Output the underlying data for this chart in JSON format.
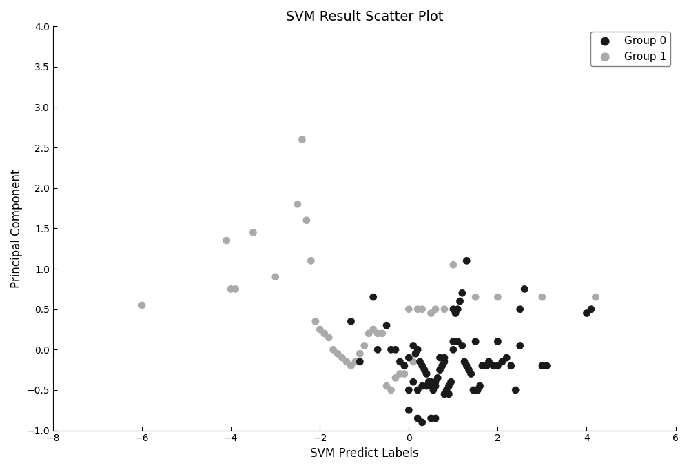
{
  "title": "SVM Result Scatter Plot",
  "xlabel": "SVM Predict Labels",
  "ylabel": "Principal Component",
  "xlim": [
    -8,
    6
  ],
  "ylim": [
    -1,
    4
  ],
  "xticks": [
    -8,
    -6,
    -4,
    -2,
    0,
    2,
    4,
    6
  ],
  "yticks": [
    -1,
    -0.5,
    0,
    0.5,
    1,
    1.5,
    2,
    2.5,
    3,
    3.5,
    4
  ],
  "group0_color": "#1a1a1a",
  "group1_color": "#aaaaaa",
  "marker_size": 60,
  "group0_x": [
    -1.3,
    -0.8,
    -0.5,
    -0.3,
    -0.2,
    -0.1,
    0.0,
    0.1,
    0.15,
    0.2,
    0.25,
    0.3,
    0.35,
    0.4,
    0.45,
    0.5,
    0.55,
    0.6,
    0.65,
    0.7,
    0.75,
    0.8,
    0.85,
    0.9,
    0.95,
    1.0,
    1.05,
    1.1,
    1.15,
    1.2,
    1.25,
    1.3,
    1.35,
    1.4,
    1.45,
    1.5,
    1.55,
    1.6,
    1.65,
    1.7,
    1.75,
    1.8,
    1.9,
    2.0,
    2.1,
    2.2,
    2.3,
    2.4,
    2.5,
    2.6,
    3.0,
    3.1,
    4.0,
    4.1,
    -1.1,
    -0.7,
    -0.4,
    0.0,
    0.2,
    0.3,
    0.5,
    0.6,
    0.8,
    0.9,
    1.0,
    1.1,
    1.2,
    1.3,
    0.4,
    0.6,
    0.7,
    0.8,
    1.0,
    1.5,
    2.0,
    2.5,
    0.0,
    0.1,
    0.2,
    0.3,
    0.5
  ],
  "group0_y": [
    0.35,
    0.65,
    0.3,
    0.0,
    -0.15,
    -0.2,
    -0.1,
    0.05,
    -0.05,
    0.0,
    -0.15,
    -0.2,
    -0.25,
    -0.3,
    -0.4,
    -0.45,
    -0.5,
    -0.4,
    -0.35,
    -0.25,
    -0.2,
    -0.15,
    -0.5,
    -0.45,
    -0.4,
    0.5,
    0.45,
    0.5,
    0.6,
    0.7,
    -0.15,
    -0.2,
    -0.25,
    -0.3,
    -0.5,
    -0.5,
    -0.5,
    -0.45,
    -0.2,
    -0.2,
    -0.2,
    -0.15,
    -0.2,
    -0.2,
    -0.15,
    -0.1,
    -0.2,
    -0.5,
    0.5,
    0.75,
    -0.2,
    -0.2,
    0.45,
    0.5,
    -0.15,
    -0.0,
    0.0,
    -0.75,
    -0.85,
    -0.9,
    -0.85,
    -0.85,
    -0.55,
    -0.55,
    0.1,
    0.1,
    0.05,
    1.1,
    -0.45,
    -0.45,
    -0.1,
    -0.1,
    0.0,
    0.1,
    0.1,
    0.05,
    -0.5,
    -0.4,
    -0.5,
    -0.45,
    -0.4
  ],
  "group1_x": [
    -6.0,
    -4.1,
    -4.0,
    -3.9,
    -3.5,
    -3.0,
    -2.5,
    -2.4,
    -2.3,
    -2.2,
    -2.1,
    -2.0,
    -1.9,
    -1.8,
    -1.7,
    -1.6,
    -1.5,
    -1.4,
    -1.3,
    -1.2,
    -1.1,
    -1.0,
    -0.9,
    -0.8,
    -0.7,
    -0.6,
    -0.5,
    -0.4,
    -0.3,
    -0.2,
    -0.1,
    0.0,
    0.1,
    0.2,
    0.3,
    0.5,
    0.6,
    0.8,
    1.0,
    1.5,
    2.0,
    3.0,
    4.2
  ],
  "group1_y": [
    0.55,
    1.35,
    0.75,
    0.75,
    1.45,
    0.9,
    1.8,
    2.6,
    1.6,
    1.1,
    0.35,
    0.25,
    0.2,
    0.15,
    0.0,
    -0.05,
    -0.1,
    -0.15,
    -0.2,
    -0.15,
    -0.05,
    0.05,
    0.2,
    0.25,
    0.2,
    0.2,
    -0.45,
    -0.5,
    -0.35,
    -0.3,
    -0.3,
    0.5,
    -0.15,
    0.5,
    0.5,
    0.45,
    0.5,
    0.5,
    1.05,
    0.65,
    0.65,
    0.65,
    0.65
  ],
  "legend_loc": "upper right",
  "figsize": [
    10.0,
    6.82
  ],
  "dpi": 100
}
